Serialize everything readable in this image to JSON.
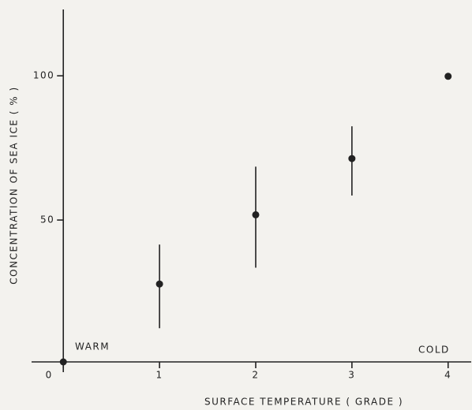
{
  "chart_data": {
    "type": "scatter",
    "x_label": "SURFACE TEMPERATURE  ( GRADE )",
    "y_label": "CONCENTRATION OF SEA ICE  ( % )",
    "annotations": [
      "WARM",
      "COLD"
    ],
    "x": [
      0,
      1,
      2,
      3,
      4
    ],
    "values": [
      0,
      27,
      51,
      70.5,
      99
    ],
    "errors": [
      null,
      14.5,
      17.5,
      12,
      null
    ],
    "color": "#222222",
    "xlim": [
      -0.33,
      4.24
    ],
    "ylim": [
      0,
      123
    ],
    "xticks": [
      0,
      1,
      2,
      3,
      4
    ],
    "yticks": [
      50,
      100
    ],
    "grid": false
  }
}
